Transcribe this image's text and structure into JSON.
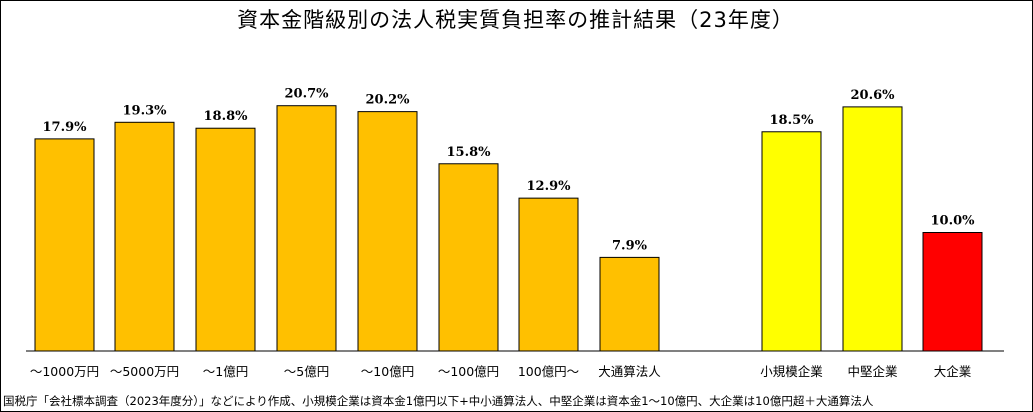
{
  "title": "資本金階級別の法人税実質負担率の推計結果（23年度）",
  "source": "国税庁「会社標本調査（2023年度分）」などにより作成、小規模企業は資本金1億円以下+中小通算法人、中堅企業は資本金1～10億円、大企業は10億円超＋大通算法人",
  "chart_data": {
    "type": "bar",
    "title": "資本金階級別の法人税実質負担率の推計結果（23年度）",
    "ylim": [
      0,
      25
    ],
    "grid": false,
    "groups": [
      {
        "categories": [
          "～1000万円",
          "～5000万円",
          "～1億円",
          "～5億円",
          "～10億円",
          "～100億円",
          "100億円～",
          "大通算法人"
        ],
        "values": [
          17.9,
          19.3,
          18.8,
          20.7,
          20.2,
          15.8,
          12.9,
          7.9
        ],
        "labels": [
          "17.9%",
          "19.3%",
          "18.8%",
          "20.7%",
          "20.2%",
          "15.8%",
          "12.9%",
          "7.9%"
        ],
        "colors": [
          "#FFC000",
          "#FFC000",
          "#FFC000",
          "#FFC000",
          "#FFC000",
          "#FFC000",
          "#FFC000",
          "#FFC000"
        ]
      },
      {
        "categories": [
          "小規模企業",
          "中堅企業",
          "大企業"
        ],
        "values": [
          18.5,
          20.6,
          10.0
        ],
        "labels": [
          "18.5%",
          "20.6%",
          "10.0%"
        ],
        "colors": [
          "#FFFF00",
          "#FFFF00",
          "#FF0000"
        ]
      }
    ]
  }
}
